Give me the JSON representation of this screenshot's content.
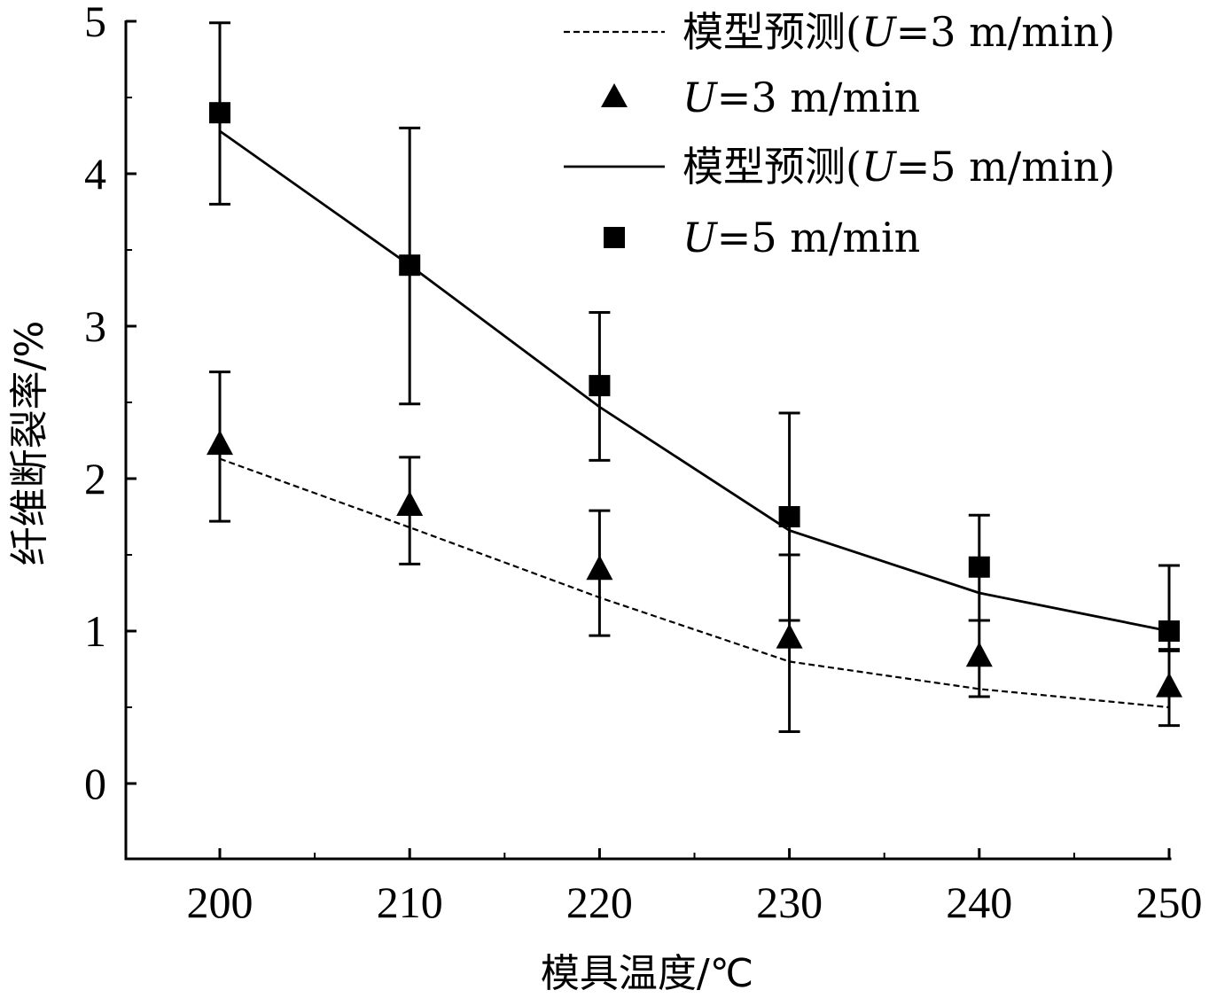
{
  "chart_data": {
    "type": "line",
    "title": "",
    "xlabel": "模具温度/℃",
    "ylabel": "纤维断裂率/%",
    "x": [
      200,
      210,
      220,
      230,
      240,
      250
    ],
    "xlim": [
      195,
      250
    ],
    "ylim": [
      -0.5,
      5
    ],
    "xticks": [
      "200",
      "210",
      "220",
      "230",
      "240",
      "250"
    ],
    "yticks": [
      "0",
      "1",
      "2",
      "3",
      "4",
      "5"
    ],
    "grid": false,
    "legend": {
      "placement": "top-right",
      "entries": [
        {
          "prefix": "模型预测(",
          "var": "U",
          "suffix": "=3 m/min)",
          "marker": "dashed-line"
        },
        {
          "prefix": "",
          "var": "U",
          "suffix": "=3 m/min",
          "marker": "triangle"
        },
        {
          "prefix": "模型预测(",
          "var": "U",
          "suffix": "=5 m/min)",
          "marker": "solid-line"
        },
        {
          "prefix": "",
          "var": "U",
          "suffix": "=5 m/min",
          "marker": "square"
        }
      ]
    },
    "series": [
      {
        "name": "模型预测(U=3 m/min)",
        "style": "dashed",
        "values": [
          2.13,
          1.68,
          1.22,
          0.8,
          0.62,
          0.5
        ]
      },
      {
        "name": "U=3 m/min",
        "marker": "triangle",
        "values": [
          2.22,
          1.82,
          1.4,
          0.95,
          0.83,
          0.63
        ],
        "err_low": [
          1.72,
          1.44,
          0.97,
          0.34,
          0.57,
          0.38
        ],
        "err_high": [
          2.7,
          2.14,
          1.79,
          1.5,
          1.07,
          0.87
        ]
      },
      {
        "name": "模型预测(U=5 m/min)",
        "style": "solid",
        "values": [
          4.28,
          3.4,
          2.47,
          1.66,
          1.25,
          1.0
        ]
      },
      {
        "name": "U=5 m/min",
        "marker": "square",
        "values": [
          4.4,
          3.4,
          2.61,
          1.75,
          1.42,
          1.0
        ],
        "err_low": [
          3.8,
          2.49,
          2.12,
          1.07,
          1.07,
          0.88
        ],
        "err_high": [
          4.99,
          4.3,
          3.09,
          2.43,
          1.76,
          1.43
        ]
      }
    ]
  }
}
